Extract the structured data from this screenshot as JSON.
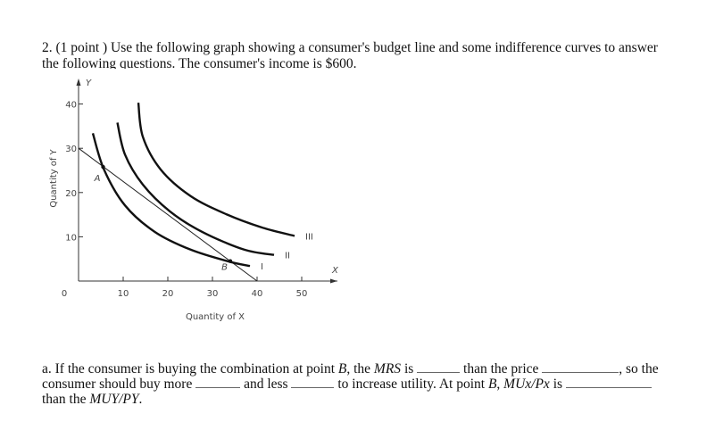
{
  "question": {
    "line1": "2. (1 point ) Use the following graph showing a consumer's budget line and some indifference curves to answer",
    "line2": "the following questions. The consumer's income is $600."
  },
  "chart_data": {
    "type": "line",
    "xlabel": "Quantity of X",
    "ylabel": "Quantity of Y",
    "x_axis_letter": "X",
    "y_axis_letter": "Y",
    "xlim": [
      0,
      57
    ],
    "ylim": [
      0,
      45
    ],
    "x_ticks": [
      "0",
      "10",
      "20",
      "30",
      "40",
      "50"
    ],
    "y_ticks": [
      "10",
      "20",
      "30",
      "40"
    ],
    "grid": false,
    "budget_line": {
      "x": [
        0,
        40
      ],
      "y": [
        30,
        0
      ]
    },
    "series": [
      {
        "name": "I",
        "x": [
          3.2,
          5.7,
          10.4,
          17.1,
          25.1,
          33.7,
          38.4
        ],
        "y": [
          33.4,
          25.2,
          17.1,
          11.1,
          7.1,
          4.4,
          3.4
        ]
      },
      {
        "name": "II",
        "x": [
          8.7,
          10.4,
          14.4,
          20.4,
          27.7,
          37.1,
          43.8
        ],
        "y": [
          35.8,
          28.6,
          21.8,
          15.8,
          11.1,
          7.1,
          5.9
        ]
      },
      {
        "name": "III",
        "x": [
          13.4,
          14.4,
          18.4,
          25.1,
          33.1,
          41.1,
          48.4
        ],
        "y": [
          40.3,
          32.6,
          25.2,
          19.2,
          15.1,
          12.1,
          10.2
        ]
      }
    ],
    "points": [
      {
        "label": "A",
        "x": 5.5,
        "y": 25.8
      },
      {
        "label": "B",
        "x": 34,
        "y": 4.5
      }
    ]
  },
  "part_a": {
    "t1": "a. If the consumer is buying the combination at point ",
    "B": "B",
    "t2": ", the ",
    "MRS": "MRS",
    "t3": " is ",
    "t4": " than the price ",
    "t5": ", so the consumer should buy more ",
    "t6": " and less ",
    "t7": " to increase utility. At point ",
    "t8": ", ",
    "MUxPx": "MUx/Px",
    "t9": " is ",
    "t10": " than the ",
    "MUyPy": "MUY/PY",
    "t11": "."
  }
}
